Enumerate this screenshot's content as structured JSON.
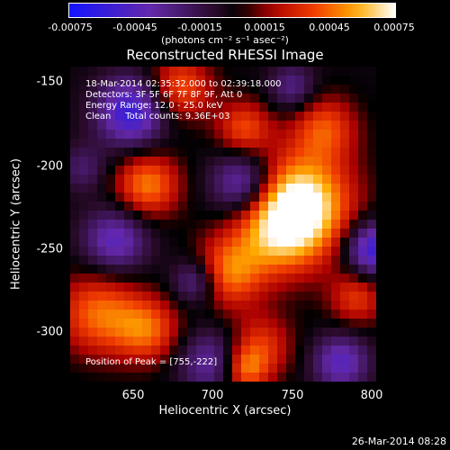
{
  "colorbar": {
    "ticks": [
      "-0.00075",
      "-0.00045",
      "-0.00015",
      "0.00015",
      "0.00045",
      "0.00075"
    ],
    "units": "(photons cm⁻² s⁻¹ asec⁻²)"
  },
  "chart_data": {
    "type": "heatmap",
    "title": "Reconstructed RHESSI Image",
    "xlabel": "Heliocentric X (arcsec)",
    "ylabel": "Heliocentric Y (arcsec)",
    "xlim": [
      612,
      802
    ],
    "ylim": [
      -332,
      -137
    ],
    "x_ticks": [
      "650",
      "700",
      "750",
      "800"
    ],
    "y_ticks": [
      "-150",
      "-200",
      "-250",
      "-300"
    ],
    "value_range": [
      -0.00075,
      0.00075
    ],
    "annotations": [
      "18-Mar-2014 02:35:32.000 to 02:39:18.000",
      "Detectors: 3F 5F 6F 7F 8F 9F, Att 0",
      "Energy Range: 12.0 - 25.0 keV",
      "Clean     Total counts: 9.36E+03"
    ],
    "peak_text": "Position of Peak = [755,-222]",
    "peak": [
      755,
      -222
    ]
  },
  "timestamp": "26-Mar-2014 08:28"
}
